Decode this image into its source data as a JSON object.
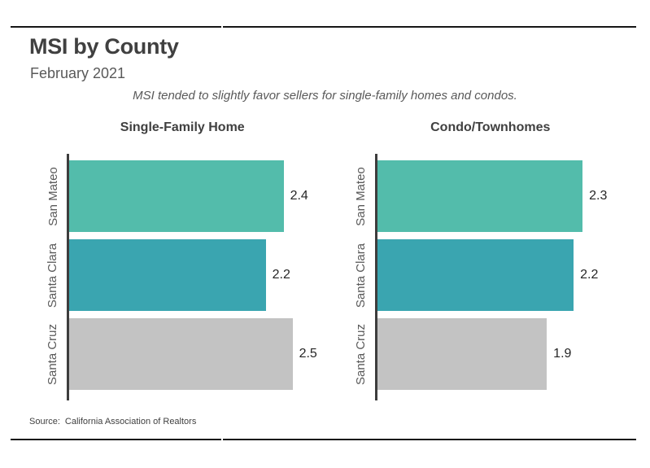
{
  "page": {
    "title": "MSI by County",
    "date": "February 2021",
    "note": "MSI tended to slightly favor sellers for single-family homes and condos.",
    "source_label": "Source:",
    "source_text": "California Association of Realtors"
  },
  "colors": {
    "bar_green": "#53bcab",
    "bar_teal": "#3aa5b0",
    "bar_gray": "#c3c3c3",
    "axis": "#3d3d3d",
    "rule": "#161616",
    "title_text": "#404040",
    "muted_text": "#595959"
  },
  "chart_data": [
    {
      "type": "bar",
      "orientation": "horizontal",
      "title": "Single-Family Home",
      "categories": [
        "San Mateo",
        "Santa Clara",
        "Santa Cruz"
      ],
      "values": [
        2.4,
        2.2,
        2.5
      ],
      "data_labels": [
        "2.4",
        "2.2",
        "2.5"
      ],
      "bar_colors": [
        "#53bcab",
        "#3aa5b0",
        "#c3c3c3"
      ],
      "xlim": [
        0,
        2.9
      ],
      "grid": false,
      "legend": false,
      "value_label_position": "outside-end"
    },
    {
      "type": "bar",
      "orientation": "horizontal",
      "title": "Condo/Townhomes",
      "categories": [
        "San Mateo",
        "Santa Clara",
        "Santa Cruz"
      ],
      "values": [
        2.3,
        2.2,
        1.9
      ],
      "data_labels": [
        "2.3",
        "2.2",
        "1.9"
      ],
      "bar_colors": [
        "#53bcab",
        "#3aa5b0",
        "#c3c3c3"
      ],
      "xlim": [
        0,
        2.9
      ],
      "grid": false,
      "legend": false,
      "value_label_position": "outside-end"
    }
  ]
}
